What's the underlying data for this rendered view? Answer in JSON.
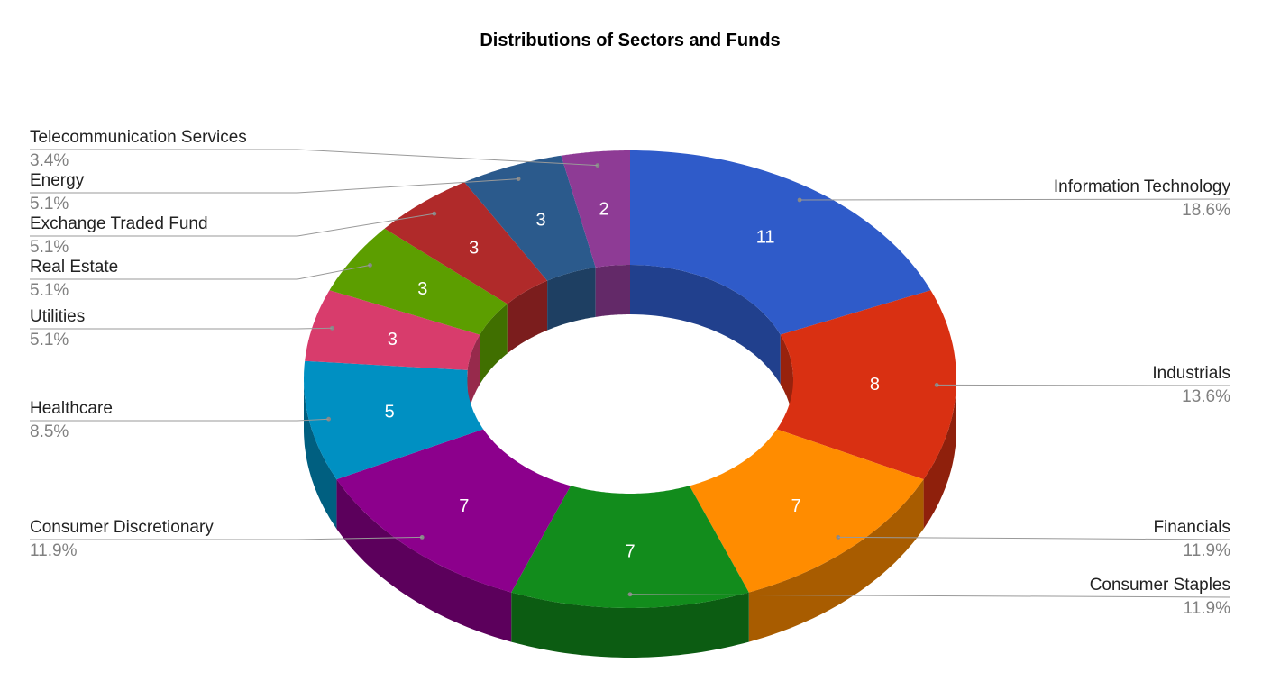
{
  "chart_data": {
    "type": "pie",
    "variant": "3d-donut",
    "title": "Distributions of Sectors and Funds",
    "legend": "none",
    "slices": [
      {
        "label": "Information Technology",
        "value": 11,
        "percent": "18.6%",
        "color": "#2f5bc9"
      },
      {
        "label": "Industrials",
        "value": 8,
        "percent": "13.6%",
        "color": "#d93012"
      },
      {
        "label": "Financials",
        "value": 7,
        "percent": "11.9%",
        "color": "#ff8c00"
      },
      {
        "label": "Consumer Staples",
        "value": 7,
        "percent": "11.9%",
        "color": "#128c1c"
      },
      {
        "label": "Consumer Discretionary",
        "value": 7,
        "percent": "11.9%",
        "color": "#8c008c"
      },
      {
        "label": "Healthcare",
        "value": 5,
        "percent": "8.5%",
        "color": "#0090c2"
      },
      {
        "label": "Utilities",
        "value": 3,
        "percent": "5.1%",
        "color": "#d83c6c"
      },
      {
        "label": "Real Estate",
        "value": 3,
        "percent": "5.1%",
        "color": "#5c9e00"
      },
      {
        "label": "Exchange Traded Fund",
        "value": 3,
        "percent": "5.1%",
        "color": "#b02a2a"
      },
      {
        "label": "Energy",
        "value": 3,
        "percent": "5.1%",
        "color": "#2b5a8c"
      },
      {
        "label": "Telecommunication Services",
        "value": 2,
        "percent": "3.4%",
        "color": "#8e3b95"
      }
    ]
  }
}
